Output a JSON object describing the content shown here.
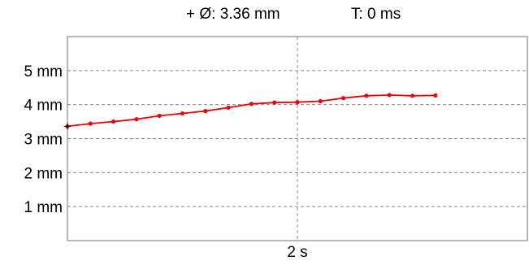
{
  "header": {
    "cursor_readout": "+  Ø: 3.36 mm",
    "time_readout": "T: 0 ms"
  },
  "colors": {
    "series": "#e8000b",
    "grid": "#8a8a8a",
    "frame": "#9a9a9a",
    "background": "#ffffff"
  },
  "chart_data": {
    "type": "line",
    "title": "",
    "xlabel": "",
    "ylabel": "",
    "grid": true,
    "x_ticks": [
      {
        "value": 2,
        "label": "2 s"
      }
    ],
    "y_ticks": [
      {
        "value": 1,
        "label": "1 mm"
      },
      {
        "value": 2,
        "label": "2 mm"
      },
      {
        "value": 3,
        "label": "3 mm"
      },
      {
        "value": 4,
        "label": "4 mm"
      },
      {
        "value": 5,
        "label": "5 mm"
      }
    ],
    "xlim": [
      0,
      4
    ],
    "ylim": [
      0,
      6
    ],
    "series": [
      {
        "x": [
          0,
          0.2,
          0.4,
          0.6,
          0.8,
          1.0,
          1.2,
          1.4,
          1.6,
          1.8,
          2.0,
          2.2,
          2.4,
          2.6,
          2.8,
          3.0,
          3.2
        ],
        "y": [
          3.36,
          3.44,
          3.5,
          3.57,
          3.67,
          3.74,
          3.81,
          3.91,
          4.02,
          4.06,
          4.07,
          4.1,
          4.19,
          4.26,
          4.28,
          4.26,
          4.27
        ]
      }
    ]
  }
}
